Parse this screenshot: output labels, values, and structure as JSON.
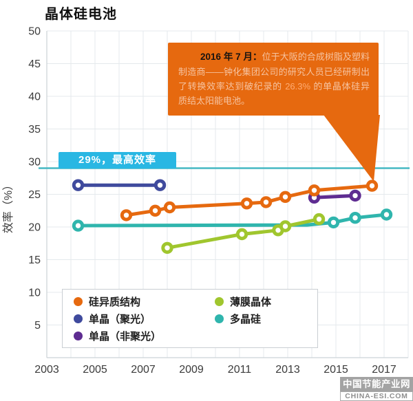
{
  "title": "晶体硅电池",
  "callout": {
    "heading": "2016 年 7 月：",
    "body_before": "位于大阪的合成树脂及塑料制造商——钟化集团公司的研究人员已经研制出了转换效率达到破纪录的 ",
    "highlight": "26.3%",
    "body_after": " 的单晶体硅异质结太阳能电池。",
    "bg_color": "#e6690f"
  },
  "annotation": {
    "label": "29%，最高效率",
    "value": 29,
    "badge_bg": "#29b7e3",
    "line_color": "#45b8c3"
  },
  "watermark": {
    "line1": "中国节能产业网",
    "line2": "CHINA-ESI.COM",
    "band_color": "#a3a3a3"
  },
  "chart_data": {
    "type": "line",
    "title": "晶体硅电池",
    "xlabel": "",
    "ylabel": "效率（%）",
    "xlim": [
      2003,
      2018
    ],
    "ylim": [
      0,
      50
    ],
    "x_ticks": [
      2003,
      2005,
      2007,
      2009,
      2011,
      2013,
      2015,
      2017
    ],
    "y_ticks": [
      5,
      10,
      15,
      20,
      25,
      30,
      35,
      40,
      45,
      50
    ],
    "grid": true,
    "legend_position": "bottom-left-box",
    "reference_line": {
      "y": 29,
      "label": "29%，最高效率"
    },
    "series": [
      {
        "key": "silicon-heterostructure",
        "name": "硅异质结构",
        "color": "#e6690f",
        "points": [
          [
            2006.3,
            21.8
          ],
          [
            2007.5,
            22.5
          ],
          [
            2008.1,
            23.0
          ],
          [
            2011.3,
            23.6
          ],
          [
            2012.1,
            23.8
          ],
          [
            2012.9,
            24.6
          ],
          [
            2014.1,
            25.6
          ],
          [
            2016.5,
            26.3
          ]
        ]
      },
      {
        "key": "mono-concentrator",
        "name": "单晶（聚光）",
        "color": "#3f4a9d",
        "points": [
          [
            2004.3,
            26.4
          ],
          [
            2007.7,
            26.4
          ]
        ]
      },
      {
        "key": "mono-non-concentrator",
        "name": "单晶（非聚光）",
        "color": "#5e2c91",
        "points": [
          [
            2014.1,
            24.5
          ],
          [
            2015.8,
            24.8
          ]
        ]
      },
      {
        "key": "thin-film-crystal",
        "name": "薄膜晶体",
        "color": "#a0c62e",
        "points": [
          [
            2008.0,
            16.8
          ],
          [
            2011.1,
            18.9
          ],
          [
            2012.6,
            19.5
          ],
          [
            2012.9,
            20.1
          ],
          [
            2014.3,
            21.2
          ]
        ]
      },
      {
        "key": "multicrystalline",
        "name": "多晶硅",
        "color": "#2fb5ad",
        "points": [
          [
            2004.3,
            20.2
          ],
          [
            2013.8,
            20.3,
            0
          ],
          [
            2014.9,
            20.7
          ],
          [
            2015.8,
            21.4
          ],
          [
            2017.1,
            21.9
          ]
        ]
      }
    ],
    "z_order": [
      "mono-concentrator",
      "multicrystalline",
      "thin-film-crystal",
      "mono-non-concentrator",
      "silicon-heterostructure"
    ]
  }
}
